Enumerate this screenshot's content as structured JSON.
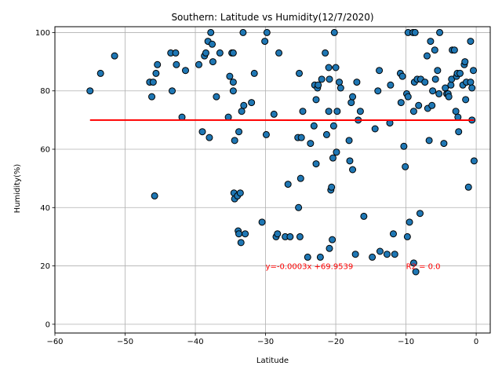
{
  "chart_data": {
    "type": "scatter",
    "title": "Southern: Latitude vs Humidity(12/7/2020)",
    "xlabel": "Latitude",
    "ylabel": "Humidity(%)",
    "xlim": [
      -60,
      2
    ],
    "ylim": [
      -3,
      102
    ],
    "xticks": [
      -60,
      -50,
      -40,
      -30,
      -20,
      -10,
      0
    ],
    "yticks": [
      0,
      20,
      40,
      60,
      80,
      100
    ],
    "grid": true,
    "colors": {
      "marker_fill": "#1f77b4",
      "marker_edge": "#000000",
      "regression": "#ff0000",
      "annotation": "#ff0000",
      "grid": "#b0b0b0"
    },
    "points": [
      [
        -55,
        80
      ],
      [
        -53.5,
        86
      ],
      [
        -51.5,
        92
      ],
      [
        -46.5,
        83
      ],
      [
        -46.2,
        78
      ],
      [
        -46,
        83
      ],
      [
        -45.8,
        44
      ],
      [
        -45.6,
        86
      ],
      [
        -45.4,
        89
      ],
      [
        -43.5,
        93
      ],
      [
        -43.3,
        80
      ],
      [
        -42.8,
        93
      ],
      [
        -42.7,
        89
      ],
      [
        -41.9,
        71
      ],
      [
        -41.4,
        87
      ],
      [
        -39.5,
        89
      ],
      [
        -39,
        66
      ],
      [
        -38.7,
        92
      ],
      [
        -38.5,
        93
      ],
      [
        -38.2,
        97
      ],
      [
        -38,
        64
      ],
      [
        -37.8,
        100
      ],
      [
        -37.6,
        96
      ],
      [
        -37.5,
        90
      ],
      [
        -37,
        78
      ],
      [
        -36.5,
        93
      ],
      [
        -35.3,
        71
      ],
      [
        -35.1,
        85
      ],
      [
        -34.8,
        93
      ],
      [
        -34.6,
        83
      ],
      [
        -34.6,
        93
      ],
      [
        -34.6,
        80
      ],
      [
        -34.4,
        63
      ],
      [
        -34.5,
        45
      ],
      [
        -34.4,
        43
      ],
      [
        -34,
        44
      ],
      [
        -33.9,
        32
      ],
      [
        -33.8,
        31
      ],
      [
        -33.8,
        66
      ],
      [
        -33.6,
        45
      ],
      [
        -33.5,
        28
      ],
      [
        -33.4,
        73
      ],
      [
        -33.2,
        100
      ],
      [
        -33.1,
        75
      ],
      [
        -32.9,
        31
      ],
      [
        -32,
        76
      ],
      [
        -31.6,
        86
      ],
      [
        -30.5,
        35
      ],
      [
        -30.1,
        97
      ],
      [
        -29.9,
        65
      ],
      [
        -29.8,
        100
      ],
      [
        -28.8,
        72
      ],
      [
        -28.5,
        30
      ],
      [
        -28.3,
        31
      ],
      [
        -28.1,
        93
      ],
      [
        -27.2,
        30
      ],
      [
        -26.8,
        48
      ],
      [
        -26.5,
        30
      ],
      [
        -25.4,
        64
      ],
      [
        -25.3,
        40
      ],
      [
        -25.2,
        86
      ],
      [
        -25.1,
        30
      ],
      [
        -25,
        50
      ],
      [
        -24.9,
        64
      ],
      [
        -24.7,
        73
      ],
      [
        -24,
        23
      ],
      [
        -23.6,
        62
      ],
      [
        -23.1,
        68
      ],
      [
        -23,
        82
      ],
      [
        -22.8,
        55
      ],
      [
        -22.8,
        77
      ],
      [
        -22.6,
        81
      ],
      [
        -22.5,
        82
      ],
      [
        -22.2,
        23
      ],
      [
        -22,
        84
      ],
      [
        -21.5,
        93
      ],
      [
        -21.3,
        65
      ],
      [
        -21,
        88
      ],
      [
        -21,
        73
      ],
      [
        -20.9,
        84
      ],
      [
        -20.9,
        26
      ],
      [
        -20.7,
        46
      ],
      [
        -20.6,
        47
      ],
      [
        -20.5,
        29
      ],
      [
        -20.4,
        57
      ],
      [
        -20.3,
        68
      ],
      [
        -20.2,
        100
      ],
      [
        -20,
        88
      ],
      [
        -19.9,
        59
      ],
      [
        -19.8,
        73
      ],
      [
        -19.5,
        83
      ],
      [
        -19.3,
        81
      ],
      [
        -18.1,
        63
      ],
      [
        -18,
        56
      ],
      [
        -17.8,
        76
      ],
      [
        -17.6,
        78
      ],
      [
        -17.6,
        53
      ],
      [
        -17.2,
        24
      ],
      [
        -17,
        83
      ],
      [
        -16.8,
        70
      ],
      [
        -16.5,
        73
      ],
      [
        -16,
        37
      ],
      [
        -14.8,
        23
      ],
      [
        -14.4,
        67
      ],
      [
        -14,
        80
      ],
      [
        -13.8,
        87
      ],
      [
        -13.7,
        25
      ],
      [
        -12.7,
        24
      ],
      [
        -12.3,
        69
      ],
      [
        -12.2,
        82
      ],
      [
        -11.8,
        31
      ],
      [
        -11.6,
        24
      ],
      [
        -10.8,
        86
      ],
      [
        -10.7,
        76
      ],
      [
        -10.5,
        85
      ],
      [
        -10.3,
        61
      ],
      [
        -10.1,
        54
      ],
      [
        -9.9,
        79
      ],
      [
        -9.8,
        30
      ],
      [
        -9.7,
        78
      ],
      [
        -9.7,
        100
      ],
      [
        -9.5,
        35
      ],
      [
        -9,
        100
      ],
      [
        -8.9,
        21
      ],
      [
        -8.9,
        73
      ],
      [
        -8.8,
        83
      ],
      [
        -8.7,
        100
      ],
      [
        -8.6,
        18
      ],
      [
        -8.4,
        84
      ],
      [
        -8.2,
        75
      ],
      [
        -8,
        38
      ],
      [
        -7.9,
        84
      ],
      [
        -7.3,
        83
      ],
      [
        -7,
        92
      ],
      [
        -6.9,
        74
      ],
      [
        -6.7,
        63
      ],
      [
        -6.5,
        97
      ],
      [
        -6.3,
        75
      ],
      [
        -6.2,
        80
      ],
      [
        -5.9,
        94
      ],
      [
        -5.8,
        84
      ],
      [
        -5.5,
        87
      ],
      [
        -5.3,
        79
      ],
      [
        -5.2,
        100
      ],
      [
        -4.6,
        62
      ],
      [
        -4.4,
        81
      ],
      [
        -4.2,
        79
      ],
      [
        -4,
        79
      ],
      [
        -3.9,
        78
      ],
      [
        -3.6,
        82
      ],
      [
        -3.5,
        84
      ],
      [
        -3.4,
        94
      ],
      [
        -3.1,
        94
      ],
      [
        -2.9,
        73
      ],
      [
        -2.8,
        85
      ],
      [
        -2.7,
        86
      ],
      [
        -2.6,
        71
      ],
      [
        -2.5,
        66
      ],
      [
        -2.3,
        86
      ],
      [
        -1.9,
        82
      ],
      [
        -1.7,
        89
      ],
      [
        -1.6,
        90
      ],
      [
        -1.5,
        77
      ],
      [
        -1.4,
        83
      ],
      [
        -1.1,
        47
      ],
      [
        -0.8,
        97
      ],
      [
        -0.8,
        83
      ],
      [
        -0.6,
        81
      ],
      [
        -0.6,
        70
      ],
      [
        -0.4,
        87
      ],
      [
        -0.3,
        56
      ]
    ],
    "regression": {
      "x": [
        -55,
        -0.3
      ],
      "y": [
        70.0,
        69.95
      ]
    },
    "annotations": {
      "equation": "y=-0.0003x +69.9539",
      "r_squared": "R2 = 0.0",
      "equation_pos": [
        -30,
        20
      ],
      "r_squared_pos": [
        -10,
        20
      ]
    }
  }
}
